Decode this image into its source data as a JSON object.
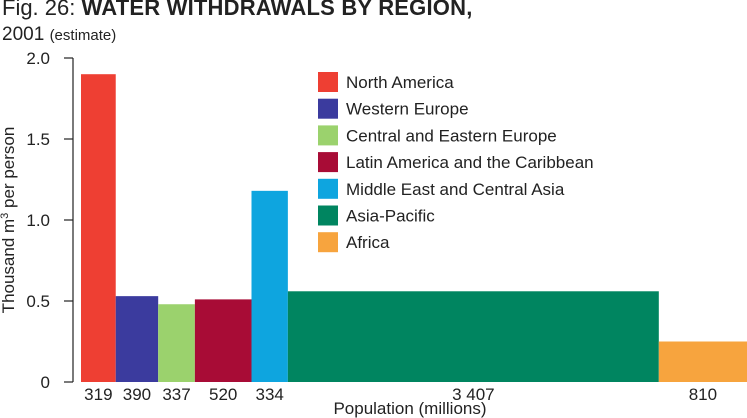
{
  "chart_data": {
    "type": "bar",
    "title_prefix": "Fig. 26:",
    "title": "WATER WITHDRAWALS BY REGION,",
    "subtitle_year": "2001",
    "subtitle_note": "(estimate)",
    "ylabel_main": "Thousand m",
    "ylabel_sup": "3",
    "ylabel_rest": " per person",
    "xlabel": "Population (millions)",
    "ylim": [
      0,
      2.0
    ],
    "yticks": [
      "0",
      "0.5",
      "1.0",
      "1.5",
      "2.0"
    ],
    "ytick_values": [
      0,
      0.5,
      1.0,
      1.5,
      2.0
    ],
    "legend_position": "upper-center",
    "bars": [
      {
        "name": "North America",
        "population_label": "319",
        "population": 319,
        "value": 1.9,
        "color": "#ee3f33"
      },
      {
        "name": "Western Europe",
        "population_label": "390",
        "population": 390,
        "value": 0.53,
        "color": "#3b3b9e"
      },
      {
        "name": "Central and Eastern Europe",
        "population_label": "337",
        "population": 337,
        "value": 0.48,
        "color": "#9bd26d"
      },
      {
        "name": "Latin America and the Caribbean",
        "population_label": "520",
        "population": 520,
        "value": 0.51,
        "color": "#a80c36"
      },
      {
        "name": "Middle East and Central Asia",
        "population_label": "334",
        "population": 334,
        "value": 1.18,
        "color": "#0ea5df"
      },
      {
        "name": "Asia-Pacific",
        "population_label": "3 407",
        "population": 3407,
        "value": 0.56,
        "color": "#008560"
      },
      {
        "name": "Africa",
        "population_label": "810",
        "population": 810,
        "value": 0.25,
        "color": "#f7a43e"
      }
    ]
  }
}
